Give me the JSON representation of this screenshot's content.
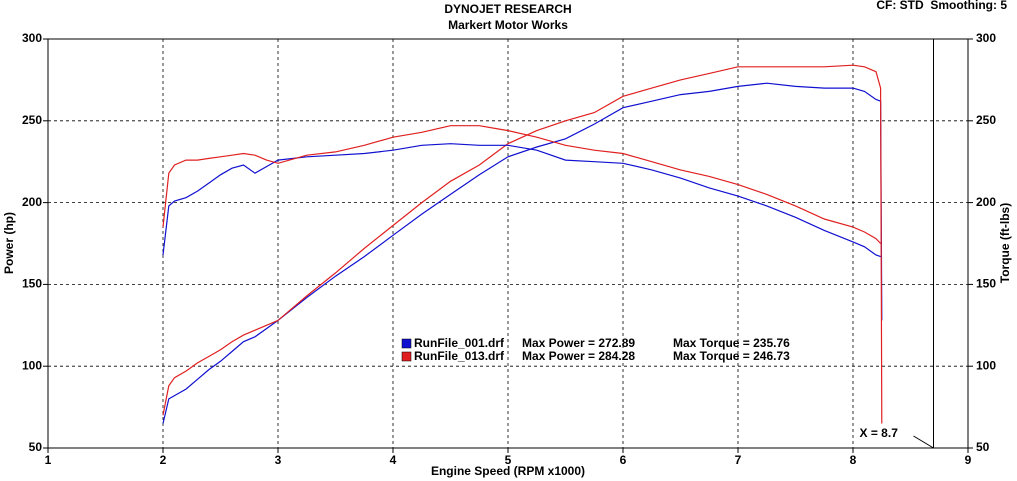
{
  "chart_data": {
    "type": "line",
    "title": "DYNOJET RESEARCH",
    "subtitle": "Markert Motor Works",
    "settings_text": "CF: STD  Smoothing: 5",
    "xlabel": "Engine Speed (RPM x1000)",
    "ylabel": "Power (hp)",
    "y2label": "Torque (ft-lbs)",
    "xlim": [
      1,
      9
    ],
    "xticks": [
      1,
      2,
      3,
      4,
      5,
      6,
      7,
      8,
      9
    ],
    "ylim": [
      50,
      300
    ],
    "yticks": [
      50,
      100,
      150,
      200,
      250,
      300
    ],
    "y2lim": [
      50,
      300
    ],
    "y2ticks": [
      50,
      100,
      150,
      200,
      250,
      300
    ],
    "grid": true,
    "cursor_x": 8.7,
    "cursor_label": "X = 8.7",
    "x": [
      2,
      2.05,
      2.1,
      2.2,
      2.3,
      2.4,
      2.5,
      2.6,
      2.7,
      2.8,
      2.9,
      3,
      3.25,
      3.5,
      3.75,
      4,
      4.25,
      4.5,
      4.75,
      5,
      5.25,
      5.5,
      5.75,
      6,
      6.25,
      6.5,
      6.75,
      7,
      7.25,
      7.5,
      7.75,
      8,
      8.1,
      8.2,
      8.24,
      8.25
    ],
    "series": [
      {
        "name": "RunFile_001.drf",
        "color": "#1010d0",
        "values": [
          65,
          80,
          82,
          86,
          92,
          98,
          103,
          109,
          115,
          118,
          123,
          128,
          142,
          155,
          167,
          180,
          193,
          205,
          217,
          228,
          234,
          239,
          248,
          258,
          262,
          266,
          268,
          271,
          273,
          271,
          270,
          270,
          268,
          263,
          262,
          128
        ]
      },
      {
        "name": "RunFile_013.drf",
        "color": "#e02020",
        "values": [
          70,
          88,
          93,
          97,
          102,
          106,
          110,
          115,
          119,
          122,
          125,
          128,
          143,
          157,
          172,
          186,
          200,
          213,
          223,
          236,
          244,
          250,
          255,
          265,
          270,
          275,
          279,
          283,
          283,
          283,
          283,
          284,
          283,
          280,
          270,
          65
        ]
      },
      {
        "name": "RunFile_001.drf",
        "color": "#1010d0",
        "axis": "y2",
        "values": [
          168,
          198,
          201,
          203,
          207,
          212,
          217,
          221,
          223,
          218,
          222,
          226,
          228,
          229,
          230,
          232,
          235,
          236,
          235,
          235,
          232,
          226,
          225,
          224,
          220,
          215,
          209,
          204,
          198,
          191,
          183,
          176,
          173,
          168,
          167,
          null
        ]
      },
      {
        "name": "RunFile_013.drf",
        "color": "#e02020",
        "axis": "y2",
        "values": [
          185,
          218,
          223,
          226,
          226,
          227,
          228,
          229,
          230,
          229,
          226,
          224,
          229,
          231,
          235,
          240,
          243,
          247,
          247,
          244,
          240,
          235,
          232,
          230,
          225,
          220,
          216,
          211,
          205,
          198,
          190,
          185,
          182,
          178,
          175,
          null
        ]
      }
    ],
    "legend": [
      {
        "power": "Max Power = 272.89",
        "torque": "Max Torque = 235.76"
      },
      {
        "power": "Max Power = 284.28",
        "torque": "Max Torque = 246.73"
      }
    ]
  }
}
